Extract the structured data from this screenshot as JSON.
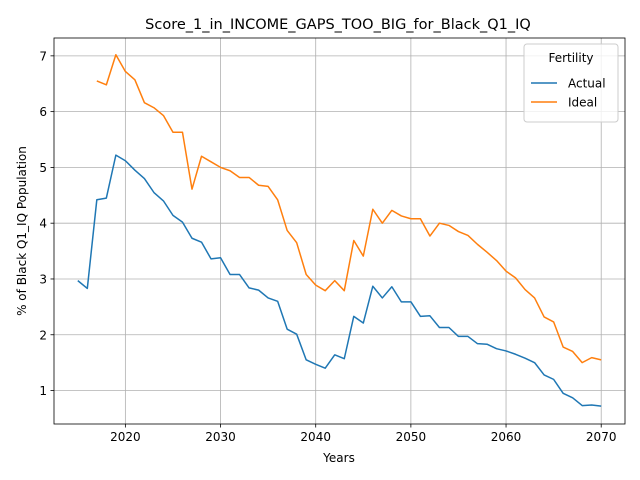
{
  "chart_data": {
    "type": "line",
    "title": "Score_1_in_INCOME_GAPS_TOO_BIG_for_Black_Q1_IQ",
    "xlabel": "Years",
    "ylabel": "% of Black Q1_IQ Population",
    "xlim": [
      2012.5,
      2072.5
    ],
    "ylim": [
      0.4,
      7.32
    ],
    "xticks": [
      2020,
      2030,
      2040,
      2050,
      2060,
      2070
    ],
    "yticks": [
      1,
      2,
      3,
      4,
      5,
      6,
      7
    ],
    "grid": true,
    "legend": {
      "title": "Fertility",
      "position": "top-right"
    },
    "series": [
      {
        "name": "Actual",
        "color": "#1f77b4",
        "x": [
          2015,
          2016,
          2017,
          2018,
          2019,
          2020,
          2021,
          2022,
          2023,
          2024,
          2025,
          2026,
          2027,
          2028,
          2029,
          2030,
          2031,
          2032,
          2033,
          2034,
          2035,
          2036,
          2037,
          2038,
          2039,
          2040,
          2041,
          2042,
          2043,
          2044,
          2045,
          2046,
          2047,
          2048,
          2049,
          2050,
          2051,
          2052,
          2053,
          2054,
          2055,
          2056,
          2057,
          2058,
          2059,
          2060,
          2061,
          2062,
          2063,
          2064,
          2065,
          2066,
          2067,
          2068,
          2069,
          2070
        ],
        "values": [
          2.97,
          2.83,
          4.42,
          4.45,
          5.22,
          5.12,
          4.95,
          4.8,
          4.55,
          4.4,
          4.14,
          4.02,
          3.73,
          3.66,
          3.36,
          3.38,
          3.08,
          3.08,
          2.84,
          2.8,
          2.66,
          2.6,
          2.1,
          2.01,
          1.55,
          1.47,
          1.4,
          1.64,
          1.57,
          2.33,
          2.21,
          2.87,
          2.66,
          2.86,
          2.59,
          2.59,
          2.33,
          2.34,
          2.13,
          2.13,
          1.97,
          1.97,
          1.84,
          1.83,
          1.75,
          1.71,
          1.65,
          1.58,
          1.5,
          1.28,
          1.2,
          0.95,
          0.87,
          0.73,
          0.74,
          0.72
        ]
      },
      {
        "name": "Ideal",
        "color": "#ff7f0e",
        "x": [
          2017,
          2018,
          2019,
          2020,
          2021,
          2022,
          2023,
          2024,
          2025,
          2026,
          2027,
          2028,
          2029,
          2030,
          2031,
          2032,
          2033,
          2034,
          2035,
          2036,
          2037,
          2038,
          2039,
          2040,
          2041,
          2042,
          2043,
          2044,
          2045,
          2046,
          2047,
          2048,
          2049,
          2050,
          2051,
          2052,
          2053,
          2054,
          2055,
          2056,
          2057,
          2058,
          2059,
          2060,
          2061,
          2062,
          2063,
          2064,
          2065,
          2066,
          2067,
          2068,
          2069,
          2070
        ],
        "values": [
          6.55,
          6.48,
          7.02,
          6.72,
          6.57,
          6.16,
          6.07,
          5.93,
          5.63,
          5.63,
          4.61,
          5.2,
          5.1,
          5.0,
          4.94,
          4.82,
          4.82,
          4.68,
          4.66,
          4.42,
          3.87,
          3.65,
          3.08,
          2.89,
          2.79,
          2.97,
          2.79,
          3.69,
          3.41,
          4.25,
          4.0,
          4.23,
          4.13,
          4.08,
          4.08,
          3.77,
          4.0,
          3.96,
          3.85,
          3.78,
          3.62,
          3.48,
          3.33,
          3.14,
          3.02,
          2.81,
          2.66,
          2.32,
          2.23,
          1.78,
          1.7,
          1.5,
          1.59,
          1.55
        ]
      }
    ]
  }
}
